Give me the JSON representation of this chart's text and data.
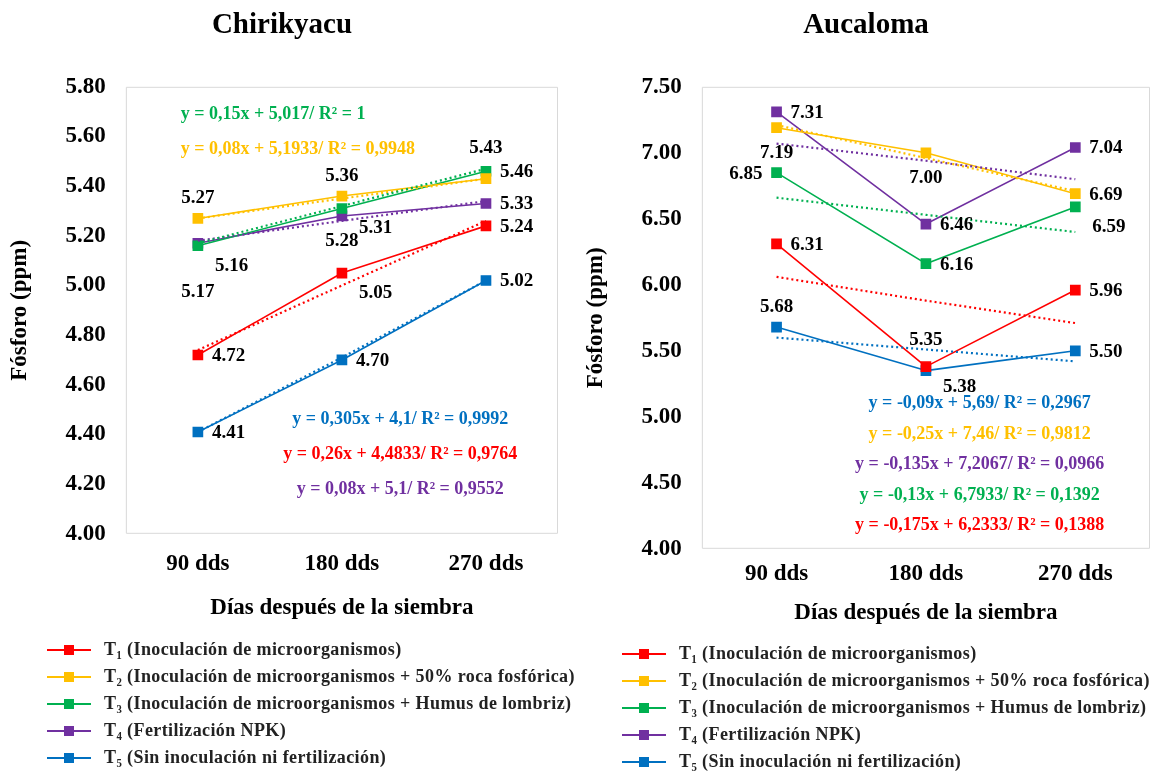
{
  "chart_data": [
    {
      "type": "line",
      "title": "Chirikyacu",
      "xlabel": "Días después de la siembra",
      "ylabel": "Fósforo (ppm)",
      "categories": [
        "90 dds",
        "180 dds",
        "270 dds"
      ],
      "ylim": [
        4,
        5.8
      ],
      "yticks": [
        {
          "value": 4,
          "label": "4.00"
        },
        {
          "value": 4.2,
          "label": "4.20"
        },
        {
          "value": 4.4,
          "label": "4.40"
        },
        {
          "value": 4.6,
          "label": "4.60"
        },
        {
          "value": 4.8,
          "label": "4.80"
        },
        {
          "value": 5,
          "label": "5.00"
        },
        {
          "value": 5.2,
          "label": "5.20"
        },
        {
          "value": 5.4,
          "label": "5.40"
        },
        {
          "value": 5.6,
          "label": "5.60"
        },
        {
          "value": 5.8,
          "label": "5.80"
        }
      ],
      "marker": "square",
      "line_style": "solid",
      "legend": "bottom",
      "annotations": [
        "y = 0,15x + 5,017/ R² = 1",
        "y = 0,08x + 5,1933/ R² = 0,9948",
        "y = 0,305x + 4,1/ R² = 0,9992",
        "y = 0,26x + 4,4833/ R² = 0,9764",
        "y = 0,08x + 5,1/ R² = 0,9552"
      ],
      "series": [
        {
          "name": "T₁ (Inoculación de microorganismos)",
          "color": "#ff0000",
          "values": [
            4.72,
            5.05,
            5.24
          ],
          "value_labels": [
            "4.72",
            "5.05",
            "5.24"
          ]
        },
        {
          "name": "T₂ (Inoculación de microorganismos + 50% roca fosfórica)",
          "color": "#ffc000",
          "values": [
            5.27,
            5.36,
            5.43
          ],
          "value_labels": [
            "5.27",
            "5.36",
            "5.43"
          ]
        },
        {
          "name": "T₃ (Inoculación de microorganismos + Humus de lombriz)",
          "color": "#00b050",
          "values": [
            5.16,
            5.31,
            5.46
          ],
          "value_labels": [
            "5.16",
            "5.31",
            "5.46"
          ]
        },
        {
          "name": "T₄ (Fertilización NPK)",
          "color": "#7030a0",
          "values": [
            5.17,
            5.28,
            5.33
          ],
          "value_labels": [
            "5.17",
            "5.28",
            "5.33"
          ]
        },
        {
          "name": "T₅ (Sin inoculación ni fertilización)",
          "color": "#0070c0",
          "values": [
            4.41,
            4.7,
            5.02
          ],
          "value_labels": [
            "4.41",
            "4.70",
            "5.02"
          ]
        },
        {
          "color": "#00b050",
          "values": [
            5.17,
            5.32,
            5.47
          ],
          "line_style": "dotted",
          "marker": "none"
        },
        {
          "color": "#ffc000",
          "values": [
            5.27,
            5.35,
            5.43
          ],
          "line_style": "dotted",
          "marker": "none"
        },
        {
          "color": "#0070c0",
          "values": [
            4.41,
            4.71,
            5.02
          ],
          "line_style": "dotted",
          "marker": "none"
        },
        {
          "color": "#ff0000",
          "values": [
            4.74,
            5.0,
            5.26
          ],
          "line_style": "dotted",
          "marker": "none"
        },
        {
          "color": "#7030a0",
          "values": [
            5.18,
            5.26,
            5.34
          ],
          "line_style": "dotted",
          "marker": "none"
        }
      ]
    },
    {
      "type": "line",
      "title": "Aucaloma",
      "xlabel": "Días después de la siembra",
      "ylabel": "Fósforo (ppm)",
      "categories": [
        "90 dds",
        "180 dds",
        "270 dds"
      ],
      "ylim": [
        4,
        7.5
      ],
      "yticks": [
        {
          "value": 4,
          "label": "4.00"
        },
        {
          "value": 4.5,
          "label": "4.50"
        },
        {
          "value": 5,
          "label": "5.00"
        },
        {
          "value": 5.5,
          "label": "5.50"
        },
        {
          "value": 6,
          "label": "6.00"
        },
        {
          "value": 6.5,
          "label": "6.50"
        },
        {
          "value": 7,
          "label": "7.00"
        },
        {
          "value": 7.5,
          "label": "7.50"
        }
      ],
      "marker": "square",
      "line_style": "solid",
      "legend": "bottom",
      "annotations": [
        "y = -0,09x + 5,69/ R² = 0,2967",
        "y = -0,25x + 7,46/ R² = 0,9812",
        "y = -0,135x + 7,2067/ R² = 0,0966",
        "y = -0,13x + 6,7933/ R² = 0,1392",
        "y = -0,175x + 6,2333/ R² = 0,1388"
      ],
      "series": [
        {
          "name": "T₁ (Inoculación de microorganismos)",
          "color": "#ff0000",
          "values": [
            6.31,
            5.38,
            5.96
          ],
          "value_labels": [
            "6.31",
            "5.38",
            "5.96"
          ]
        },
        {
          "name": "T₂ (Inoculación de microorganismos + 50% roca fosfórica)",
          "color": "#ffc000",
          "values": [
            7.19,
            7.0,
            6.69
          ],
          "value_labels": [
            "7.19",
            "7.00",
            "6.69"
          ]
        },
        {
          "name": "T₃ (Inoculación de microorganismos + Humus de lombriz)",
          "color": "#00b050",
          "values": [
            6.85,
            6.16,
            6.59
          ],
          "value_labels": [
            "6.85",
            "6.16",
            "6.59"
          ]
        },
        {
          "name": "T₄ (Fertilización NPK)",
          "color": "#7030a0",
          "values": [
            7.31,
            6.46,
            7.04
          ],
          "value_labels": [
            "7.31",
            "6.46",
            "7.04"
          ]
        },
        {
          "name": "T₅ (Sin inoculación ni fertilización)",
          "color": "#0070c0",
          "values": [
            5.68,
            5.35,
            5.5
          ],
          "value_labels": [
            "5.68",
            "5.35",
            "5.50"
          ]
        },
        {
          "color": "#0070c0",
          "values": [
            5.6,
            5.51,
            5.42
          ],
          "line_style": "dotted",
          "marker": "none"
        },
        {
          "color": "#ffc000",
          "values": [
            7.21,
            6.96,
            6.71
          ],
          "line_style": "dotted",
          "marker": "none"
        },
        {
          "color": "#7030a0",
          "values": [
            7.07,
            6.94,
            6.8
          ],
          "line_style": "dotted",
          "marker": "none"
        },
        {
          "color": "#00b050",
          "values": [
            6.66,
            6.53,
            6.4
          ],
          "line_style": "dotted",
          "marker": "none"
        },
        {
          "color": "#ff0000",
          "values": [
            6.06,
            5.88,
            5.71
          ],
          "line_style": "dotted",
          "marker": "none"
        }
      ]
    }
  ]
}
